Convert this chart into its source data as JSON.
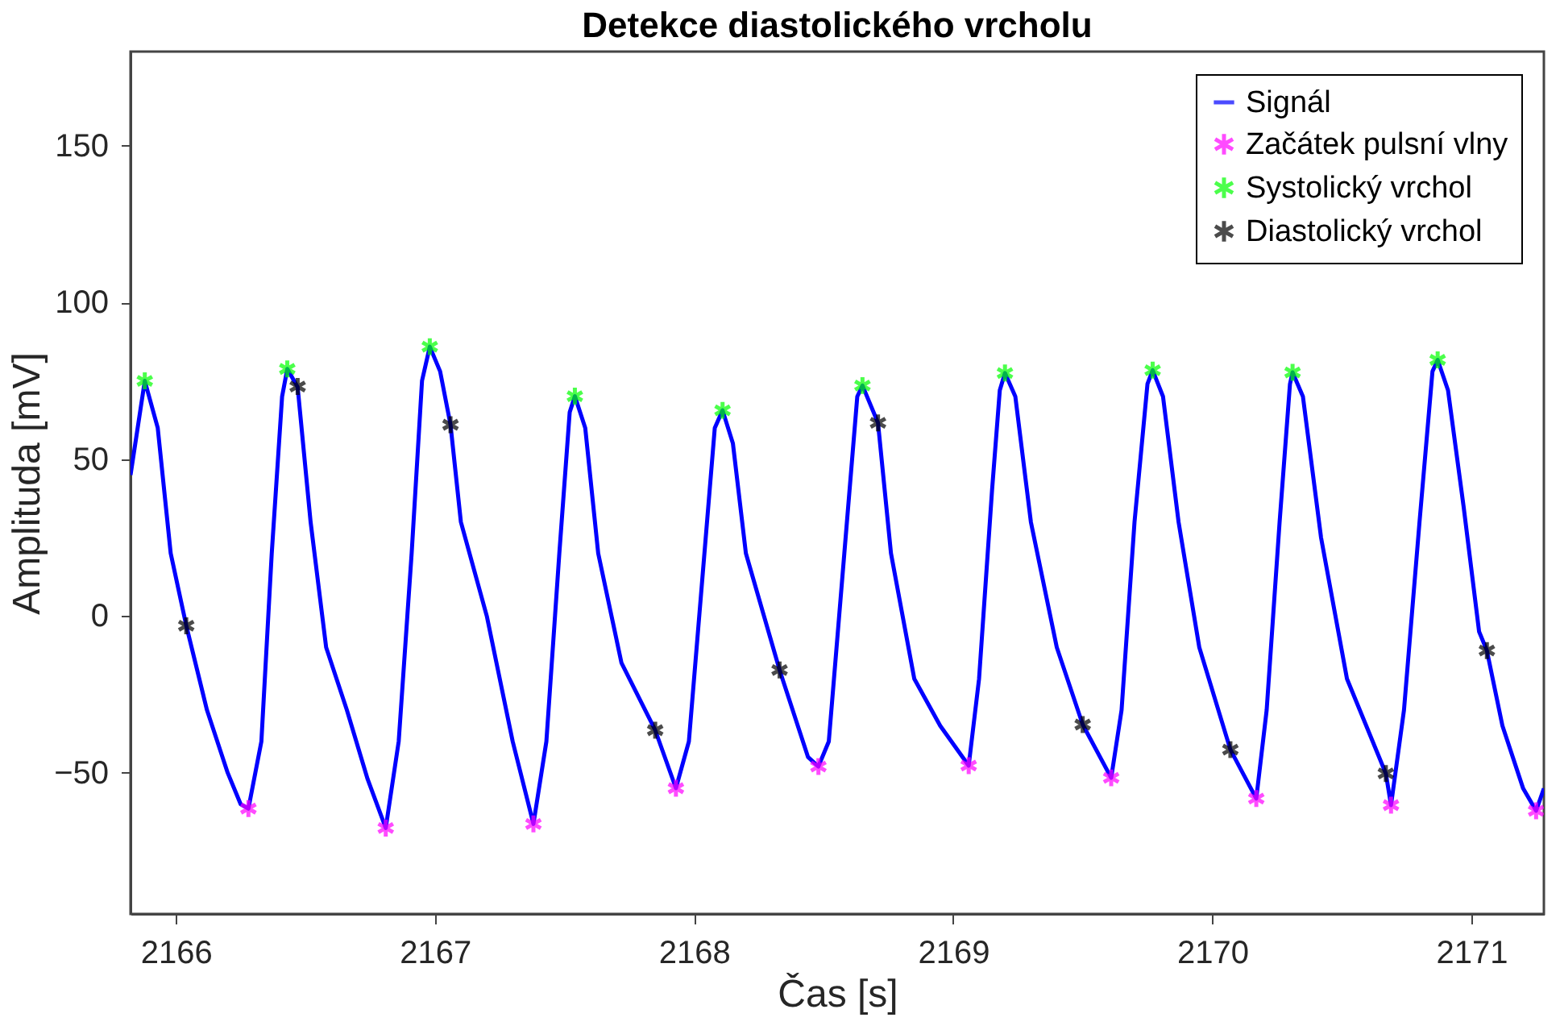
{
  "chart_data": {
    "type": "line",
    "title": "Detekce diastolického vrcholu",
    "xlabel": "Čas [s]",
    "ylabel": "Amplituda [mV]",
    "xlim": [
      2165.825,
      2171.28
    ],
    "xticks": [
      2166,
      2167,
      2168,
      2169,
      2170,
      2171
    ],
    "ylim": [
      -95,
      180
    ],
    "yticks": [
      -50,
      0,
      50,
      100,
      150
    ],
    "grid": false,
    "legend": "top right",
    "series": [
      {
        "name": "Signál",
        "color": "#0000ff",
        "line_style": "solid",
        "x": [
          2165.825,
          2165.88,
          2165.93,
          2165.98,
          2166.04,
          2166.12,
          2166.2,
          2166.25,
          2166.28,
          2166.33,
          2166.37,
          2166.41,
          2166.43,
          2166.47,
          2166.52,
          2166.58,
          2166.66,
          2166.74,
          2166.81,
          2166.86,
          2166.91,
          2166.95,
          2166.98,
          2167.02,
          2167.06,
          2167.1,
          2167.2,
          2167.3,
          2167.38,
          2167.43,
          2167.48,
          2167.52,
          2167.54,
          2167.58,
          2167.63,
          2167.72,
          2167.85,
          2167.93,
          2167.98,
          2168.03,
          2168.08,
          2168.11,
          2168.15,
          2168.2,
          2168.33,
          2168.44,
          2168.48,
          2168.52,
          2168.58,
          2168.63,
          2168.65,
          2168.71,
          2168.76,
          2168.85,
          2168.95,
          2169.06,
          2169.1,
          2169.15,
          2169.18,
          2169.2,
          2169.24,
          2169.3,
          2169.4,
          2169.5,
          2169.61,
          2169.65,
          2169.7,
          2169.75,
          2169.77,
          2169.81,
          2169.87,
          2169.95,
          2170.07,
          2170.17,
          2170.21,
          2170.26,
          2170.3,
          2170.31,
          2170.35,
          2170.42,
          2170.52,
          2170.67,
          2170.69,
          2170.74,
          2170.8,
          2170.85,
          2170.87,
          2170.91,
          2170.97,
          2171.03,
          2171.06,
          2171.12,
          2171.2,
          2171.25,
          2171.28
        ],
        "values": [
          45,
          75,
          60,
          20,
          -3,
          -30,
          -50,
          -60,
          -61.4,
          -40,
          20,
          70,
          78.8,
          73,
          30,
          -10,
          -30,
          -52,
          -67.6,
          -40,
          20,
          75,
          85.9,
          78,
          61,
          30,
          0,
          -40,
          -66.3,
          -40,
          20,
          65,
          70.1,
          60,
          20,
          -15,
          -36.4,
          -54.9,
          -40,
          10,
          60,
          65.6,
          55,
          20,
          -17.2,
          -45,
          -48,
          -40,
          20,
          70,
          73.5,
          61.6,
          20,
          -20,
          -35,
          -47.7,
          -20,
          40,
          72,
          77.5,
          70,
          30,
          -10,
          -34.6,
          -51.6,
          -30,
          30,
          74,
          78.4,
          70,
          30,
          -10,
          -42.6,
          -58.2,
          -30,
          30,
          74,
          77.7,
          70,
          25,
          -20,
          -50.2,
          -60.3,
          -30,
          30,
          78,
          81.7,
          72,
          35,
          -5,
          -11,
          -35,
          -55,
          -62.1,
          -55
        ]
      },
      {
        "name": "Začátek pulsní vlny",
        "type": "scatter",
        "color": "#ff00ff",
        "marker": "cross",
        "x": [
          2166.28,
          2166.81,
          2167.38,
          2167.93,
          2168.48,
          2169.06,
          2169.61,
          2170.17,
          2170.69,
          2171.25
        ],
        "values": [
          -61.4,
          -67.6,
          -66.3,
          -54.9,
          -48,
          -47.7,
          -51.6,
          -58.2,
          -60.3,
          -62.1
        ]
      },
      {
        "name": "Systolický vrchol",
        "type": "scatter",
        "color": "#00ff00",
        "marker": "cross",
        "x": [
          2165.88,
          2166.43,
          2166.98,
          2167.54,
          2168.11,
          2168.65,
          2169.2,
          2169.77,
          2170.31,
          2170.87
        ],
        "values": [
          75,
          78.8,
          85.9,
          70.1,
          65.6,
          73.5,
          77.5,
          78.4,
          77.7,
          81.7
        ]
      },
      {
        "name": "Diastolický vrchol",
        "type": "scatter",
        "color": "#000000",
        "marker": "cross",
        "x": [
          2166.04,
          2166.47,
          2167.06,
          2167.85,
          2168.33,
          2168.71,
          2169.5,
          2170.07,
          2170.67,
          2171.06
        ],
        "values": [
          -3.1,
          73.2,
          61,
          -36.4,
          -17.2,
          61.6,
          -34.6,
          -42.6,
          -50.2,
          -11
        ]
      }
    ]
  }
}
